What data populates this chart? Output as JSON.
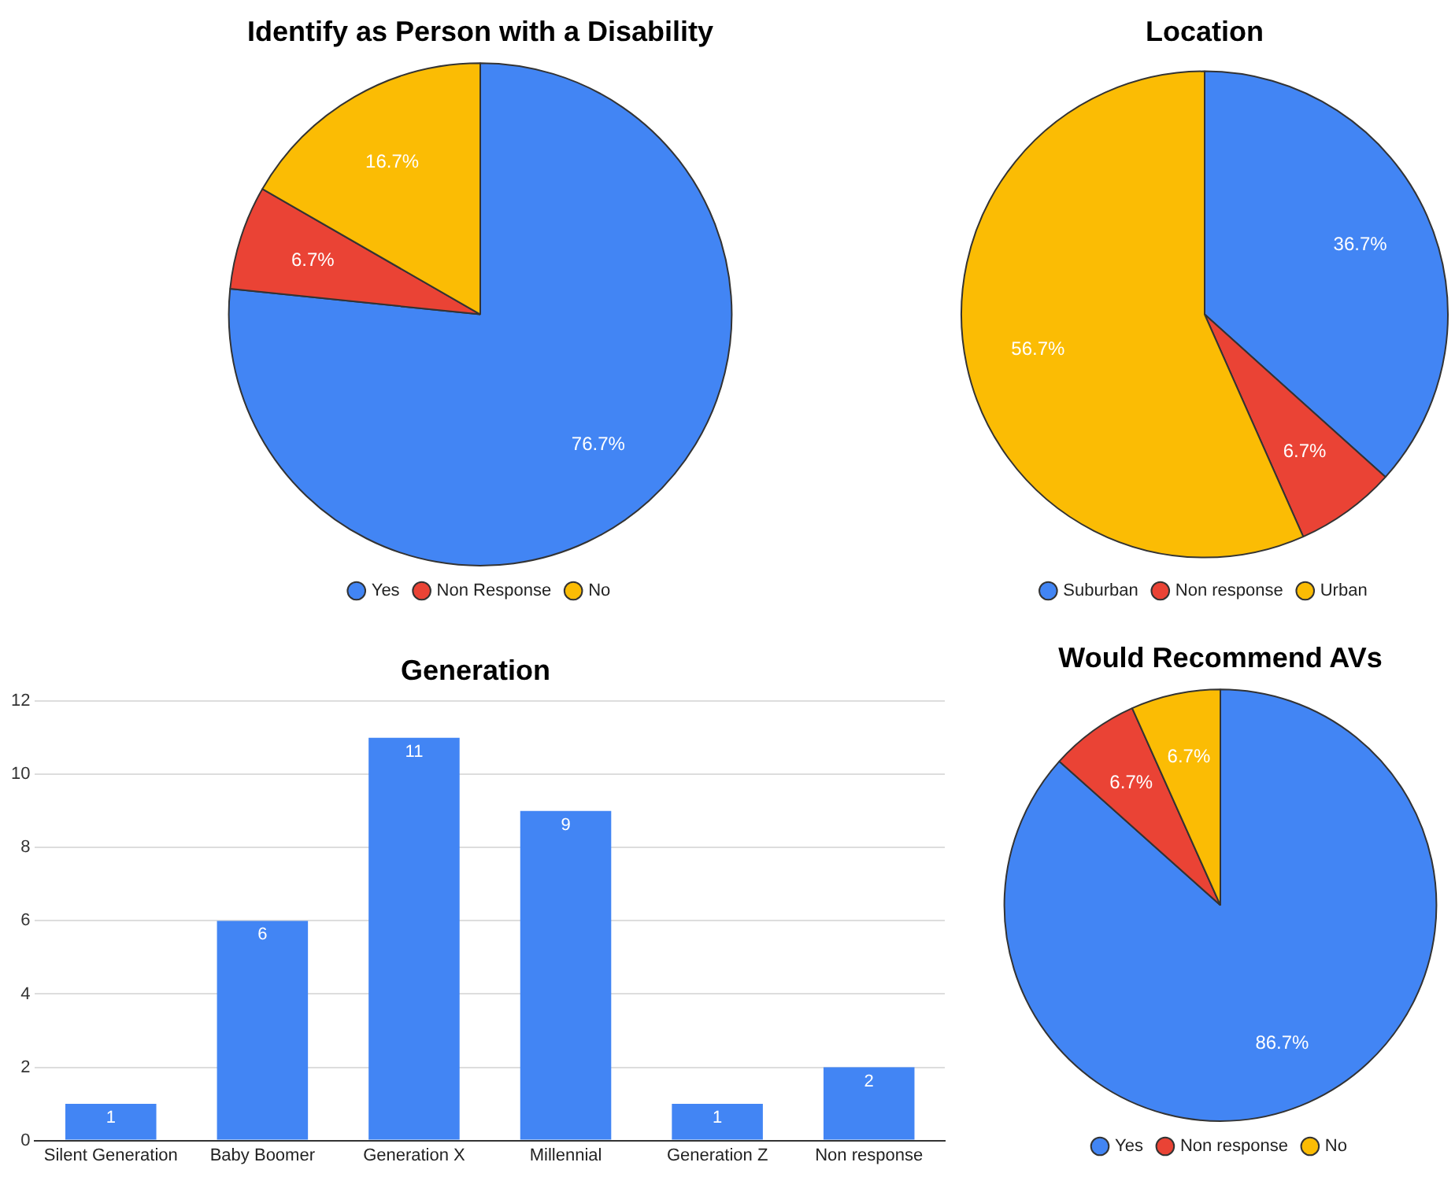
{
  "chart_data": [
    {
      "type": "pie",
      "title": "Identify as Person with a Disability",
      "categories": [
        "Yes",
        "Non Response",
        "No"
      ],
      "values": [
        76.7,
        6.7,
        16.7
      ],
      "colors": [
        "#4285f4",
        "#ea4335",
        "#fbbc04"
      ],
      "value_labels": [
        "76.7%",
        "6.7%",
        "16.7%"
      ],
      "legend": "bottom"
    },
    {
      "type": "pie",
      "title": "Location",
      "categories": [
        "Suburban",
        "Non response",
        "Urban"
      ],
      "values": [
        36.7,
        6.7,
        56.7
      ],
      "colors": [
        "#4285f4",
        "#ea4335",
        "#fbbc04"
      ],
      "value_labels": [
        "36.7%",
        "6.7%",
        "56.7%"
      ],
      "legend": "bottom"
    },
    {
      "type": "bar",
      "title": "Generation",
      "categories": [
        "Silent Generation",
        "Baby Boomer",
        "Generation X",
        "Millennial",
        "Generation Z",
        "Non response"
      ],
      "values": [
        1,
        6,
        11,
        9,
        1,
        2
      ],
      "color": "#4285f4",
      "ylim": [
        0,
        12
      ],
      "yticks": [
        0,
        2,
        4,
        6,
        8,
        10,
        12
      ],
      "grid": "y",
      "data_labels": true
    },
    {
      "type": "pie",
      "title": "Would Recommend AVs",
      "categories": [
        "Yes",
        "Non response",
        "No"
      ],
      "values": [
        86.7,
        6.7,
        6.7
      ],
      "colors": [
        "#4285f4",
        "#ea4335",
        "#fbbc04"
      ],
      "value_labels": [
        "86.7%",
        "6.7%",
        "6.7%"
      ],
      "legend": "bottom"
    }
  ]
}
